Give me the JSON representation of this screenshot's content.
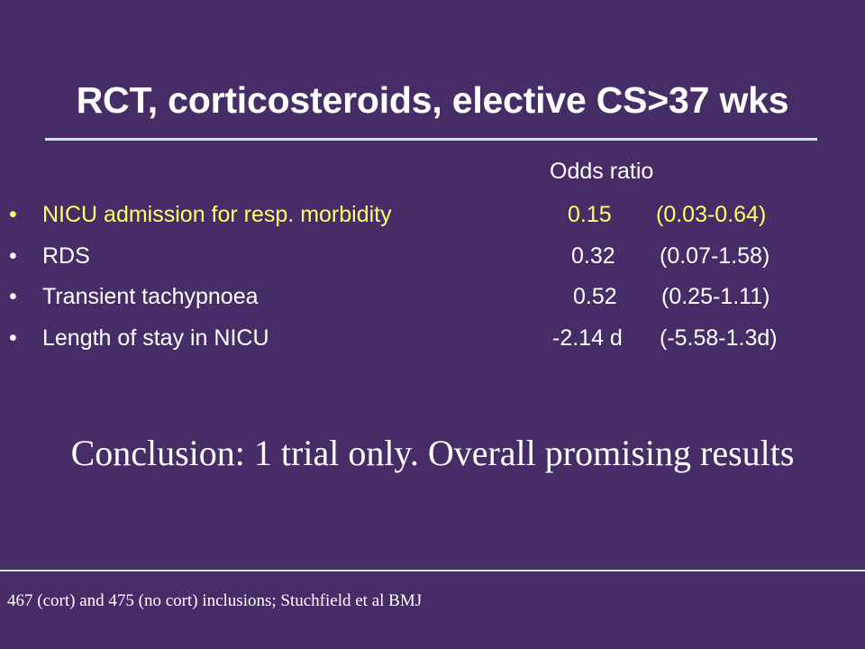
{
  "slide": {
    "title": "RCT, corticosteroids, elective CS>37 wks",
    "column_header": "Odds ratio",
    "bullet_glyph": "•",
    "rows": [
      {
        "label": "NICU admission for resp. morbidity",
        "ratio": "0.15",
        "ci": "(0.03-0.64)",
        "highlight": true
      },
      {
        "label": "RDS",
        "ratio": "0.32",
        "ci": "(0.07-1.58)",
        "highlight": false
      },
      {
        "label": "Transient tachypnoea",
        "ratio": "0.52",
        "ci": "(0.25-1.11)",
        "highlight": false
      },
      {
        "label": "Length of stay in NICU",
        "ratio": "-2.14 d",
        "ci": "(-5.58-1.3d)",
        "highlight": false
      }
    ],
    "conclusion": "Conclusion: 1 trial only. Overall promising results",
    "footnote": "467 (cort) and 475 (no cort) inclusions; Stuchfield et al BMJ",
    "colors": {
      "background": "#472d67",
      "text": "#ffffff",
      "highlight": "#ffff66",
      "rule": "#cfe6ee"
    }
  }
}
